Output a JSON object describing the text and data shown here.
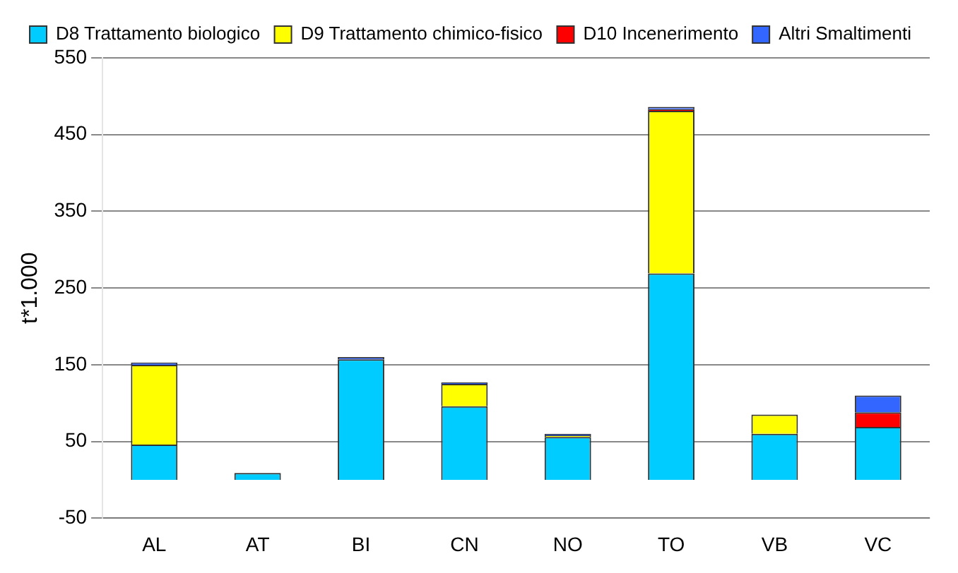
{
  "chart_data": {
    "type": "bar",
    "stacked": true,
    "ylabel": "t*1.000",
    "categories": [
      "AL",
      "AT",
      "BI",
      "CN",
      "NO",
      "TO",
      "VB",
      "VC"
    ],
    "series": [
      {
        "name": "D8 Trattamento biologico",
        "color": "#00ccff",
        "values": [
          46,
          9,
          157,
          96,
          56,
          269,
          60,
          69
        ]
      },
      {
        "name": "D9 Trattamento chimico-fisico",
        "color": "#ffff00",
        "values": [
          104,
          0,
          0,
          29,
          2,
          212,
          25,
          0
        ]
      },
      {
        "name": "D10 Incenerimento",
        "color": "#ff0000",
        "values": [
          0,
          0,
          0,
          0,
          0,
          2,
          0,
          19
        ]
      },
      {
        "name": "Altri Smaltimenti",
        "color": "#3366ff",
        "values": [
          3,
          null,
          3,
          2,
          2,
          3,
          null,
          22
        ]
      }
    ],
    "ylim": [
      -50,
      550
    ],
    "yticks": [
      -50,
      50,
      150,
      250,
      350,
      450,
      550
    ],
    "grid": "y",
    "legend": "top"
  }
}
